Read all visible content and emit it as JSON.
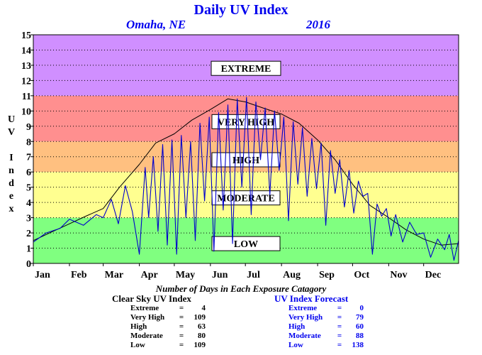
{
  "title": "Daily UV Index",
  "subtitle_location": "Omaha, NE",
  "subtitle_year": "2016",
  "y_axis_label": "UV Index",
  "footer_caption": "Number of Days in Each Exposure Catagory",
  "colors": {
    "title": "#0000ee",
    "extreme": "#d08fff",
    "very_high": "#ff8f8f",
    "high": "#ffc080",
    "moderate": "#ffff90",
    "low": "#80ff80",
    "observed_line": "#0000cc",
    "clear_sky_line": "#000000"
  },
  "clear_sky_table": {
    "heading": "Clear Sky UV Index",
    "rows": [
      {
        "label": "Extreme",
        "value": "4"
      },
      {
        "label": "Very High",
        "value": "109"
      },
      {
        "label": "High",
        "value": "63"
      },
      {
        "label": "Moderate",
        "value": "80"
      },
      {
        "label": "Low",
        "value": "109"
      }
    ]
  },
  "forecast_table": {
    "heading": "UV Index Forecast",
    "rows": [
      {
        "label": "Extreme",
        "value": "0"
      },
      {
        "label": "Very High",
        "value": "79"
      },
      {
        "label": "High",
        "value": "60"
      },
      {
        "label": "Moderate",
        "value": "88"
      },
      {
        "label": "Low",
        "value": "138"
      }
    ]
  },
  "chart_data": {
    "type": "line",
    "ylim": [
      0,
      15
    ],
    "xlim": [
      1,
      366
    ],
    "grid": true,
    "y_ticks": [
      "0",
      "1",
      "2",
      "3",
      "4",
      "5",
      "6",
      "7",
      "8",
      "9",
      "10",
      "11",
      "12",
      "13",
      "14",
      "15"
    ],
    "x_tick_labels": [
      "Jan",
      "Feb",
      "Mar",
      "Apr",
      "May",
      "Jun",
      "Jul",
      "Aug",
      "Sep",
      "Oct",
      "Nov",
      "Dec"
    ],
    "x_tick_days": [
      1,
      32,
      61,
      92,
      122,
      153,
      183,
      214,
      245,
      275,
      306,
      336
    ],
    "bands": [
      {
        "label": "LOW",
        "from": 0,
        "to": 3,
        "color": "#80ff80"
      },
      {
        "label": "MODERATE",
        "from": 3,
        "to": 6,
        "color": "#ffff90"
      },
      {
        "label": "HIGH",
        "from": 6,
        "to": 8,
        "color": "#ffc080"
      },
      {
        "label": "VERY HIGH",
        "from": 8,
        "to": 11,
        "color": "#ff8f8f"
      },
      {
        "label": "EXTREME",
        "from": 11,
        "to": 15,
        "color": "#d08fff"
      }
    ],
    "band_label_values": {
      "EXTREME": 12.8,
      "VERY HIGH": 9.3,
      "HIGH": 6.8,
      "MODERATE": 4.3,
      "LOW": 1.3
    },
    "series": [
      {
        "color": "#000000",
        "x": [
          1,
          15,
          32,
          46,
          61,
          75,
          92,
          106,
          122,
          137,
          153,
          168,
          183,
          198,
          214,
          229,
          245,
          260,
          275,
          290,
          306,
          321,
          336,
          351,
          366
        ],
        "y": [
          1.5,
          2.0,
          2.6,
          3.1,
          3.6,
          5.0,
          6.5,
          7.9,
          8.5,
          9.4,
          10.1,
          10.8,
          10.6,
          10.2,
          9.8,
          9.2,
          8.1,
          6.8,
          5.2,
          3.8,
          3.0,
          2.2,
          1.6,
          1.2,
          1.3
        ]
      },
      {
        "color": "#0000cc",
        "x": [
          1,
          12,
          24,
          32,
          44,
          55,
          61,
          68,
          74,
          80,
          86,
          92,
          97,
          100,
          104,
          108,
          112,
          116,
          120,
          124,
          128,
          132,
          136,
          140,
          144,
          148,
          152,
          156,
          160,
          164,
          168,
          172,
          176,
          180,
          184,
          188,
          192,
          196,
          200,
          204,
          208,
          212,
          216,
          220,
          224,
          228,
          232,
          236,
          240,
          244,
          248,
          252,
          256,
          260,
          264,
          268,
          272,
          276,
          280,
          284,
          288,
          292,
          296,
          300,
          304,
          308,
          312,
          318,
          324,
          330,
          336,
          342,
          348,
          354,
          358,
          362,
          366
        ],
        "y": [
          1.4,
          2.0,
          2.3,
          2.9,
          2.5,
          3.2,
          3.0,
          4.2,
          2.6,
          5.1,
          3.4,
          0.6,
          6.3,
          3.0,
          7.0,
          2.1,
          7.8,
          1.2,
          8.1,
          0.6,
          8.4,
          3.0,
          8.0,
          1.5,
          9.2,
          4.1,
          9.6,
          0.8,
          9.9,
          3.5,
          10.4,
          1.3,
          10.8,
          5.0,
          10.9,
          3.2,
          10.6,
          6.8,
          10.2,
          4.5,
          10.0,
          6.1,
          9.6,
          2.8,
          9.3,
          5.2,
          8.9,
          4.4,
          8.2,
          4.9,
          7.9,
          2.5,
          7.4,
          4.6,
          6.8,
          3.7,
          6.1,
          3.3,
          5.4,
          4.4,
          4.6,
          0.6,
          3.9,
          3.1,
          3.6,
          1.8,
          3.2,
          1.4,
          2.7,
          1.9,
          2.0,
          0.4,
          1.6,
          0.9,
          1.9,
          0.2,
          1.5
        ]
      }
    ]
  }
}
